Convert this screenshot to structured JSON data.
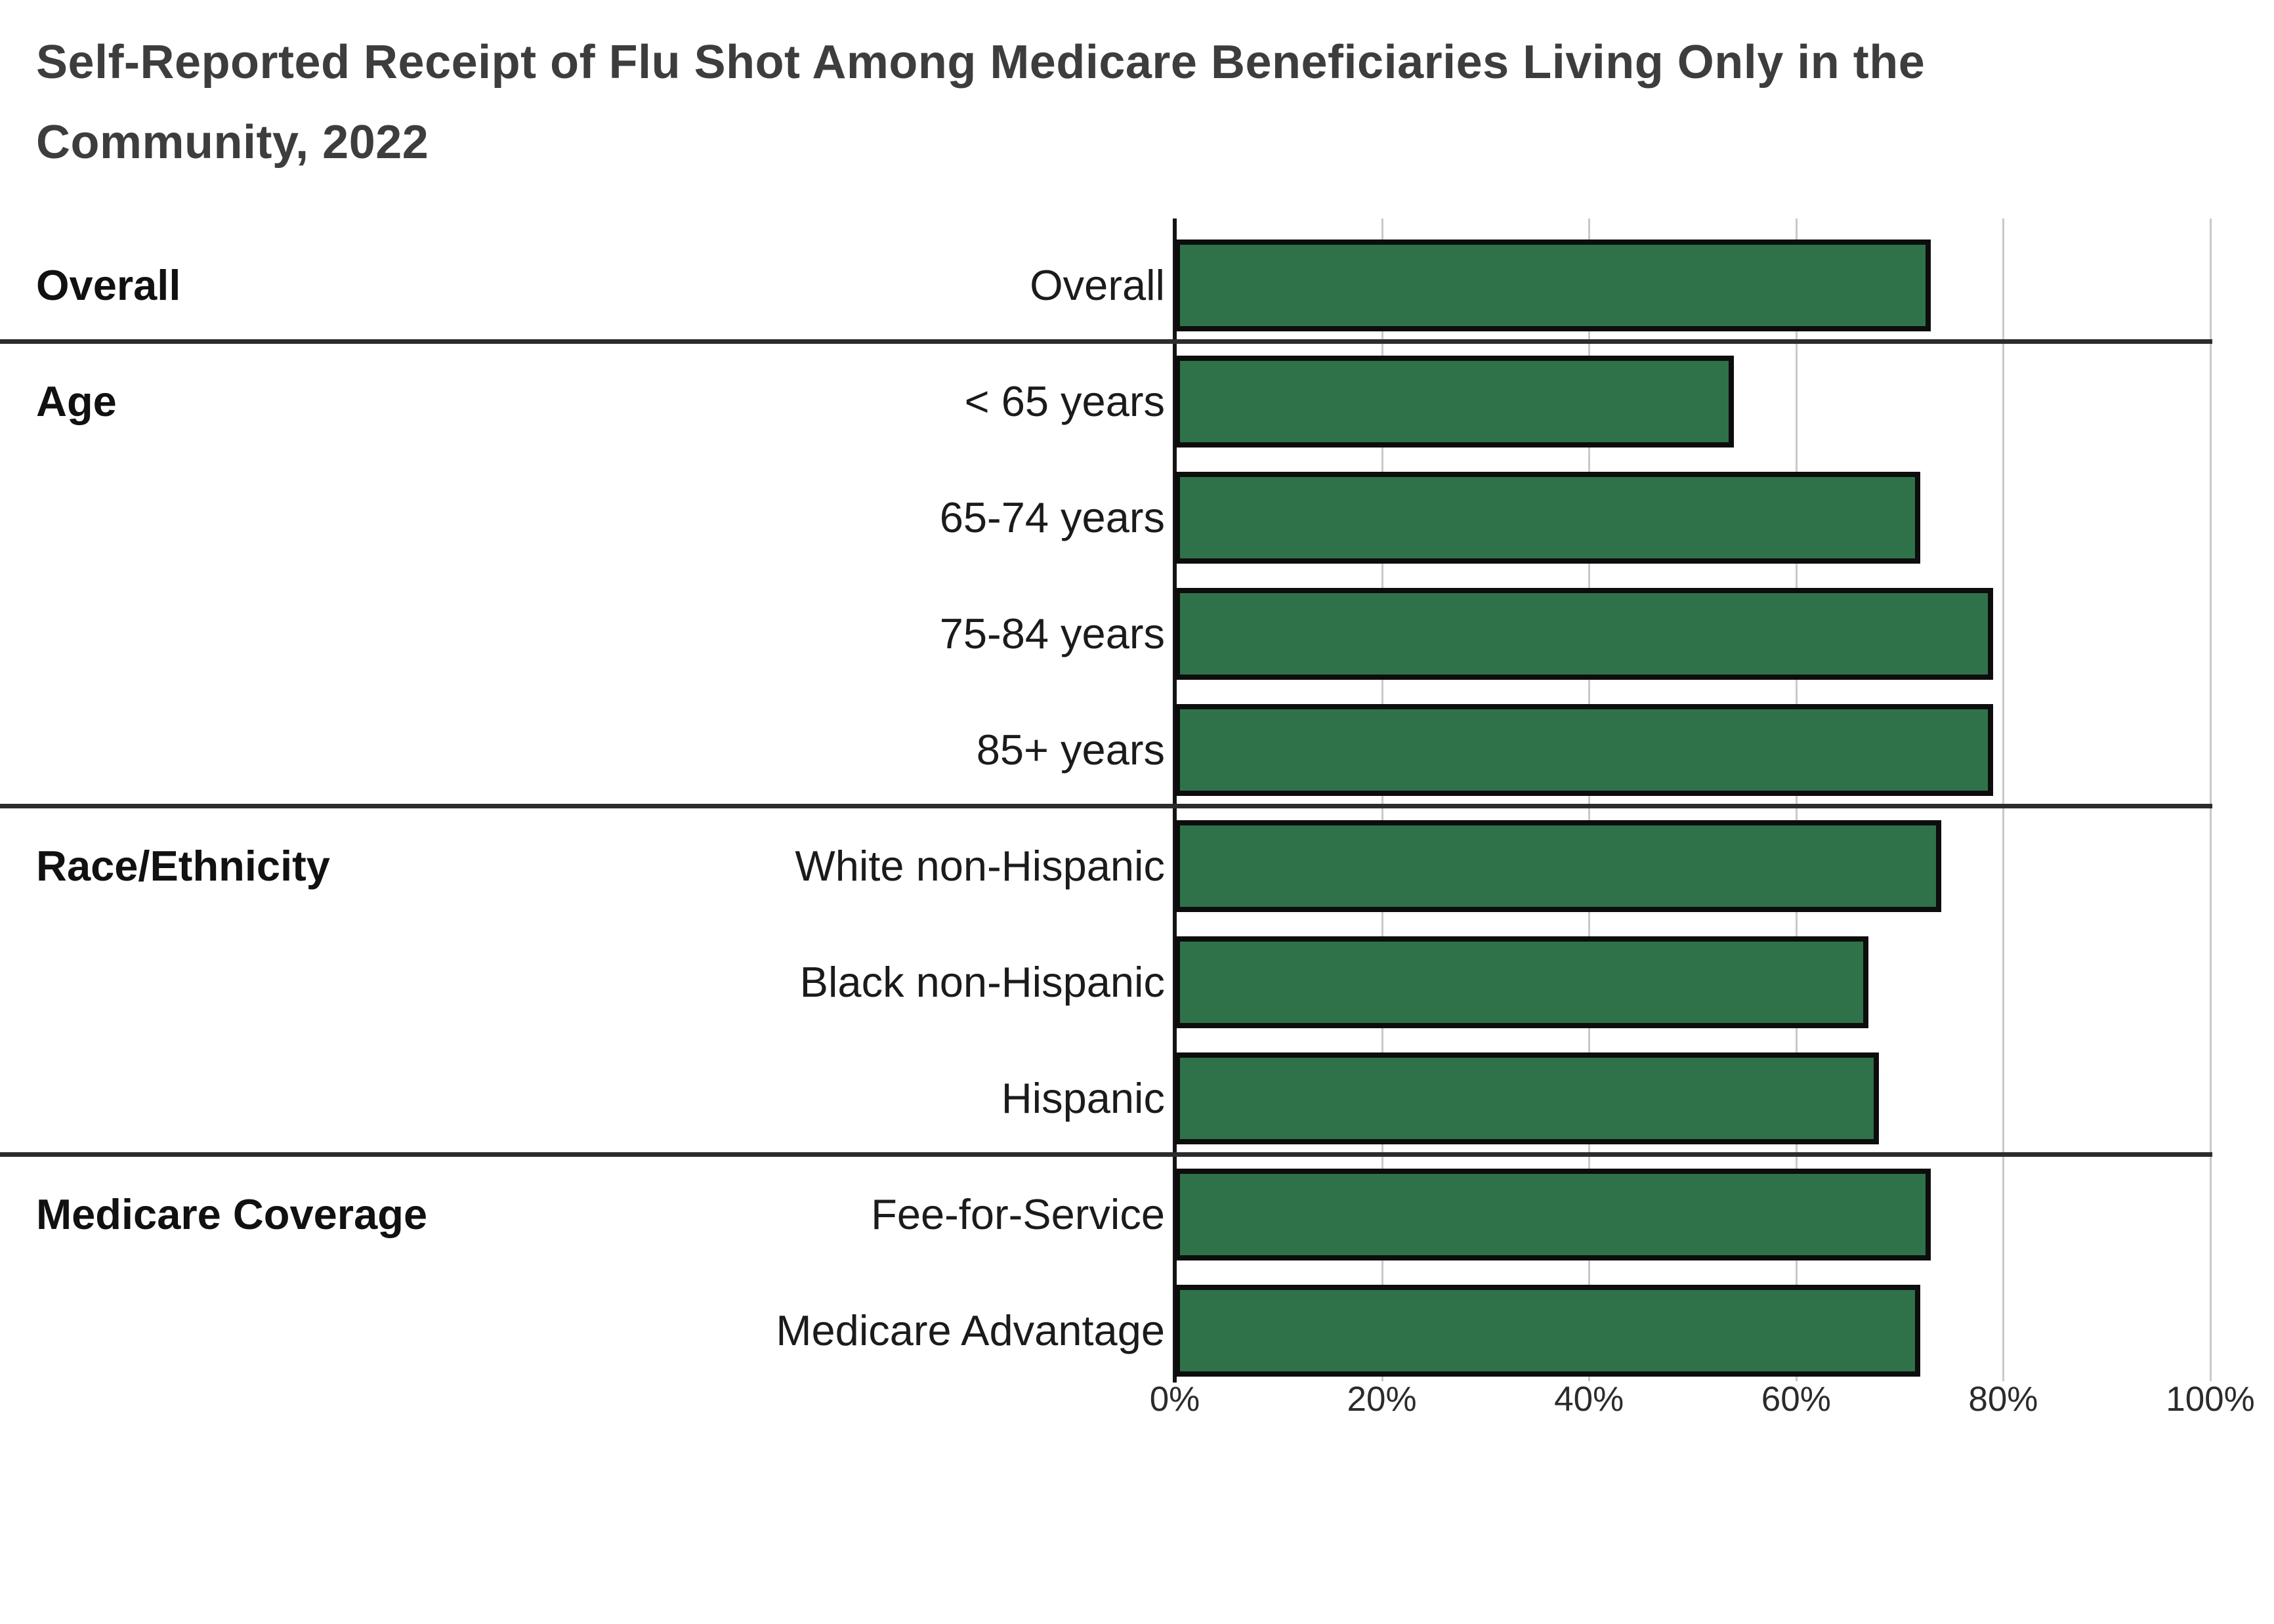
{
  "title": {
    "line1": "Self-Reported Receipt of Flu Shot Among Medicare Beneficiaries Living Only in the",
    "line2": "Community, 2022"
  },
  "colors": {
    "bar_fill": "#2F7249",
    "bar_border": "#0d0d0d",
    "gridline": "#c9c9c9",
    "axis_line": "#141414",
    "group_divider": "#2c2c2c",
    "title_text": "#3d3d3d",
    "label_text": "#1b1b1b"
  },
  "chart_data": {
    "type": "bar",
    "orientation": "horizontal",
    "title": "Self-Reported Receipt of Flu Shot Among Medicare Beneficiaries Living Only in the Community, 2022",
    "value_unit": "percent",
    "xlim": [
      0,
      100
    ],
    "grid": true,
    "categories": [
      "Overall",
      "< 65 years",
      "65-74 years",
      "75-84 years",
      "85+ years",
      "White non-Hispanic",
      "Black non-Hispanic",
      "Hispanic",
      "Fee-for-Service",
      "Medicare Advantage"
    ],
    "values": [
      73,
      54,
      72,
      79,
      79,
      74,
      67,
      68,
      73,
      72
    ],
    "groups": [
      {
        "label": "Overall",
        "rows": [
          {
            "label": "Overall",
            "value": 73
          }
        ]
      },
      {
        "label": "Age",
        "rows": [
          {
            "label": "< 65 years",
            "value": 54
          },
          {
            "label": "65-74 years",
            "value": 72
          },
          {
            "label": "75-84 years",
            "value": 79
          },
          {
            "label": "85+ years",
            "value": 79
          }
        ]
      },
      {
        "label": "Race/Ethnicity",
        "rows": [
          {
            "label": "White non-Hispanic",
            "value": 74
          },
          {
            "label": "Black non-Hispanic",
            "value": 67
          },
          {
            "label": "Hispanic",
            "value": 68
          }
        ]
      },
      {
        "label": "Medicare Coverage",
        "rows": [
          {
            "label": "Fee-for-Service",
            "value": 73
          },
          {
            "label": "Medicare Advantage",
            "value": 72
          }
        ]
      }
    ],
    "x_axis": {
      "tick_labels": [
        "0%",
        "20%",
        "40%",
        "60%",
        "80%",
        "100%"
      ],
      "tick_values": [
        0,
        20,
        40,
        60,
        80,
        100
      ]
    }
  }
}
